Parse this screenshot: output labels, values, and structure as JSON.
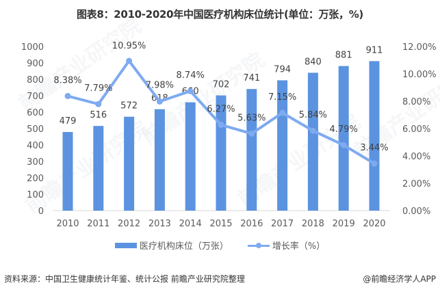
{
  "title": "图表8：2010-2020年中国医疗机构床位统计(单位：万张，%)",
  "watermark": "前瞻产业研究院",
  "colors": {
    "bar": "#5b93e0",
    "line": "#7eaaf0",
    "axis": "#d9d9d9"
  },
  "chart_data": {
    "type": "bar+line",
    "title": "图表8：2010-2020年中国医疗机构床位统计(单位：万张，%)",
    "categories": [
      "2010",
      "2011",
      "2012",
      "2013",
      "2014",
      "2015",
      "2016",
      "2017",
      "2018",
      "2019",
      "2020"
    ],
    "series": [
      {
        "name": "医疗机构床位（万张）",
        "type": "bar",
        "axis": "left",
        "values": [
          479,
          516,
          572,
          618,
          660,
          702,
          741,
          794,
          840,
          881,
          911
        ],
        "labels": [
          "479",
          "516",
          "572",
          "618",
          "660",
          "702",
          "741",
          "794",
          "840",
          "881",
          "911"
        ]
      },
      {
        "name": "增长率（%）",
        "type": "line",
        "axis": "right",
        "values": [
          8.38,
          7.79,
          10.95,
          7.98,
          8.74,
          6.27,
          5.63,
          7.15,
          5.84,
          4.79,
          3.44
        ],
        "labels": [
          "8.38%",
          "7.79%",
          "10.95%",
          "7.98%",
          "8.74%",
          "6.27%",
          "5.63%",
          "7.15%",
          "5.84%",
          "4.79%",
          "3.44%"
        ]
      }
    ],
    "y_left": {
      "ylim": [
        0,
        1000
      ],
      "ticks": [
        "0",
        "100",
        "200",
        "300",
        "400",
        "500",
        "600",
        "700",
        "800",
        "900",
        "1000"
      ]
    },
    "y_right": {
      "ylim": [
        0,
        12
      ],
      "ticks": [
        "0.00%",
        "2.00%",
        "4.00%",
        "6.00%",
        "8.00%",
        "10.00%",
        "12.00%"
      ]
    },
    "grid": false,
    "legend": "bottom"
  },
  "legend": {
    "bar_label": "医疗机构床位（万张）",
    "line_label": "增长率（%）"
  },
  "footer": {
    "source": "资料来源：中国卫生健康统计年鉴、统计公报 前瞻产业研究院整理",
    "credit": "@前瞻经济学人APP"
  }
}
